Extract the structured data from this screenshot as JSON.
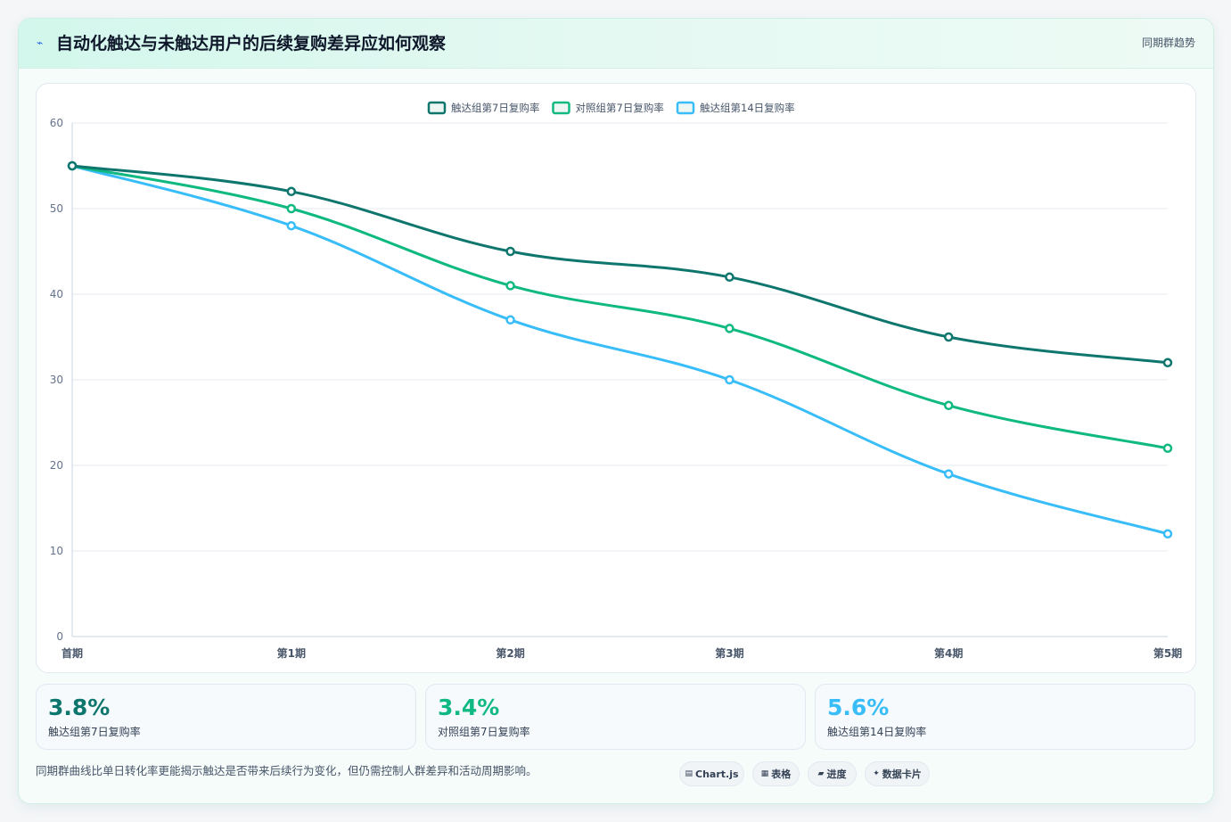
{
  "header": {
    "icon": "lightning-icon",
    "title": "自动化触达与未触达用户的后续复购差异应如何观察",
    "tag": "同期群趋势"
  },
  "chart_data": {
    "type": "line",
    "categories": [
      "首期",
      "第1期",
      "第2期",
      "第3期",
      "第4期",
      "第5期"
    ],
    "ylim": [
      0,
      60
    ],
    "yticks": [
      0,
      10,
      20,
      30,
      40,
      50,
      60
    ],
    "grid": true,
    "legend_position": "top",
    "series": [
      {
        "name": "触达组第7日复购率",
        "color": "#0f766e",
        "values": [
          55,
          52,
          45,
          42,
          35,
          32
        ]
      },
      {
        "name": "对照组第7日复购率",
        "color": "#10b981",
        "values": [
          55,
          50,
          41,
          36,
          27,
          22
        ]
      },
      {
        "name": "触达组第14日复购率",
        "color": "#38bdf8",
        "values": [
          55,
          48,
          37,
          30,
          19,
          12
        ]
      }
    ]
  },
  "stats": [
    {
      "value": "3.8%",
      "label": "触达组第7日复购率",
      "color": "#0f766e"
    },
    {
      "value": "3.4%",
      "label": "对照组第7日复购率",
      "color": "#10b981"
    },
    {
      "value": "5.6%",
      "label": "触达组第14日复购率",
      "color": "#38bdf8"
    }
  ],
  "footnote": "同期群曲线比单日转化率更能揭示触达是否带来后续行为变化，但仍需控制人群差异和活动周期影响。",
  "pills": [
    {
      "icon": "▤",
      "label": "Chart.js"
    },
    {
      "icon": "▦",
      "label": "表格"
    },
    {
      "icon": "▰",
      "label": "进度"
    },
    {
      "icon": "✦",
      "label": "数据卡片"
    }
  ]
}
